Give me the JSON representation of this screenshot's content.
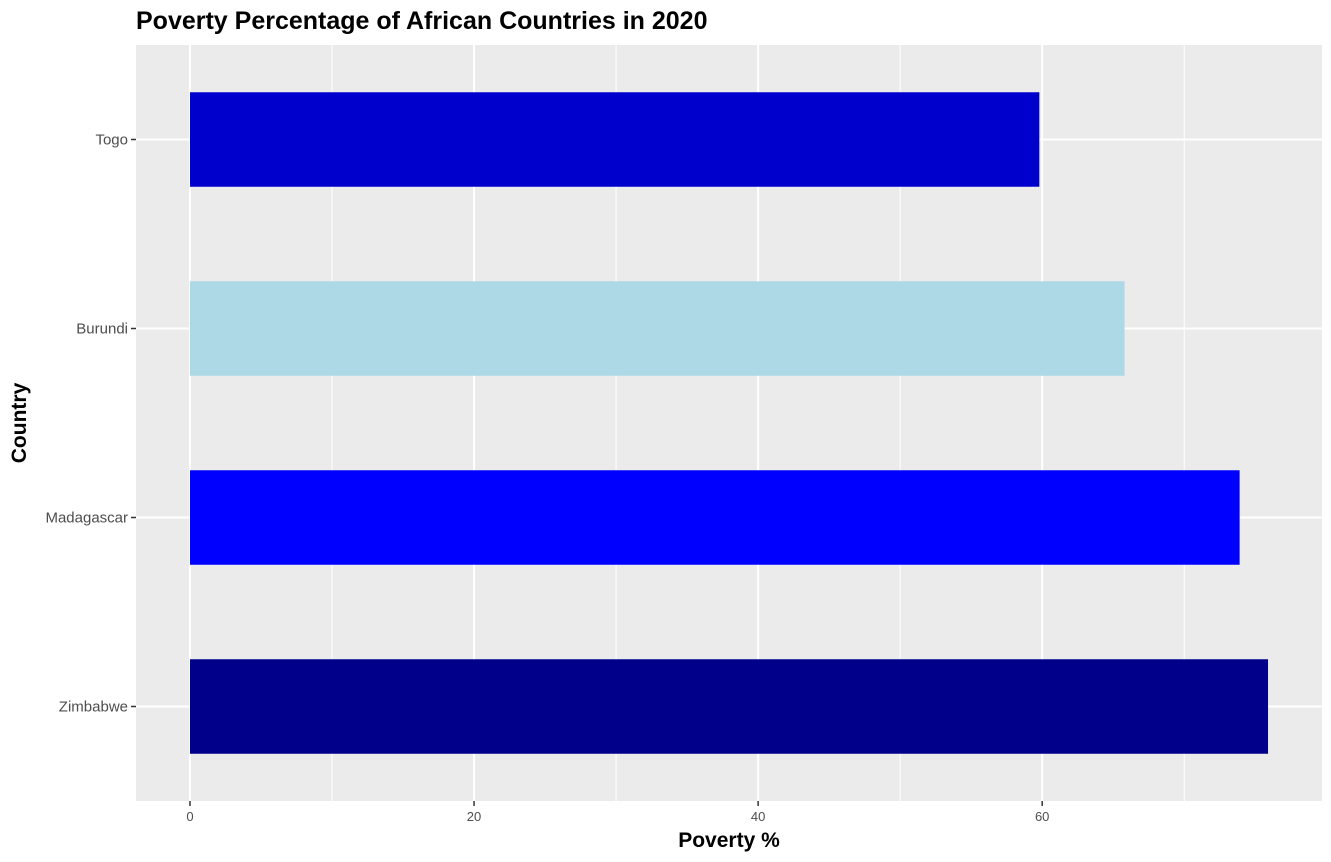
{
  "chart_data": {
    "type": "bar",
    "orientation": "horizontal",
    "title": "Poverty Percentage of African Countries in 2020",
    "xlabel": "Poverty %",
    "ylabel": "Country",
    "categories": [
      "Zimbabwe",
      "Madagascar",
      "Burundi",
      "Togo"
    ],
    "values": [
      75.9,
      73.9,
      65.8,
      59.8
    ],
    "bar_colors": [
      "#00008B",
      "#0000FF",
      "#ADD8E6",
      "#0000CD"
    ],
    "x_ticks": [
      0,
      20,
      40,
      60
    ],
    "xlim": [
      -3.8,
      79.7
    ],
    "grid": true,
    "panel_background": "#EBEBEB",
    "grid_color": "#FFFFFF"
  }
}
